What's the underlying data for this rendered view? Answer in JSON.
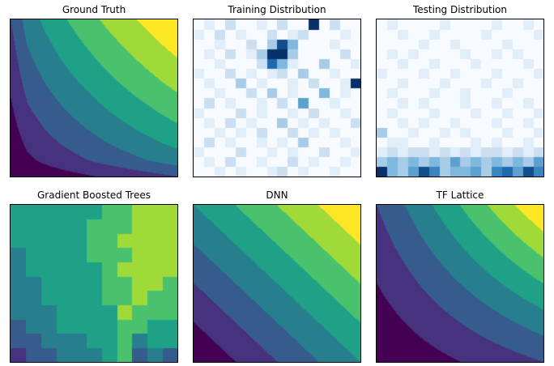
{
  "colormaps": {
    "viridis8": [
      "#440154",
      "#46327e",
      "#365c8d",
      "#277f8e",
      "#1fa187",
      "#4ac16d",
      "#a0da39",
      "#fde725"
    ],
    "blues_stops": [
      [
        0,
        "#f7fbff"
      ],
      [
        0.25,
        "#c6dbef"
      ],
      [
        0.5,
        "#6baed6"
      ],
      [
        0.75,
        "#2171b5"
      ],
      [
        1,
        "#08306b"
      ]
    ]
  },
  "chart_data": [
    {
      "type": "heatmap",
      "title": "Ground Truth",
      "colormap": "viridis",
      "interpolation": "bilinear",
      "levels": 8,
      "value_range": [
        0,
        1
      ],
      "rows_top_to_bottom": true,
      "grid": [
        [
          0.25,
          0.433,
          0.523,
          0.599,
          0.666,
          0.729,
          0.788,
          0.843,
          0.897,
          0.95,
          1
        ],
        [
          0.225,
          0.4,
          0.487,
          0.56,
          0.625,
          0.686,
          0.743,
          0.797,
          0.849,
          0.9,
          0.95
        ],
        [
          0.2,
          0.366,
          0.45,
          0.52,
          0.582,
          0.641,
          0.696,
          0.749,
          0.799,
          0.849,
          0.897
        ],
        [
          0.175,
          0.332,
          0.412,
          0.48,
          0.539,
          0.596,
          0.65,
          0.7,
          0.749,
          0.797,
          0.843
        ],
        [
          0.15,
          0.298,
          0.373,
          0.438,
          0.495,
          0.549,
          0.6,
          0.65,
          0.696,
          0.743,
          0.788
        ],
        [
          0.125,
          0.262,
          0.333,
          0.394,
          0.448,
          0.5,
          0.549,
          0.596,
          0.641,
          0.686,
          0.729
        ],
        [
          0.1,
          0.225,
          0.291,
          0.348,
          0.399,
          0.448,
          0.495,
          0.539,
          0.582,
          0.625,
          0.666
        ],
        [
          0.075,
          0.187,
          0.248,
          0.3,
          0.348,
          0.394,
          0.438,
          0.48,
          0.52,
          0.56,
          0.599
        ],
        [
          0.05,
          0.146,
          0.2,
          0.248,
          0.291,
          0.333,
          0.373,
          0.412,
          0.45,
          0.487,
          0.523
        ],
        [
          0.025,
          0.1,
          0.146,
          0.187,
          0.225,
          0.262,
          0.298,
          0.332,
          0.366,
          0.4,
          0.433
        ],
        [
          0,
          0.025,
          0.05,
          0.075,
          0.1,
          0.125,
          0.15,
          0.175,
          0.2,
          0.225,
          0.25
        ]
      ]
    },
    {
      "type": "heatmap",
      "title": "Training Distribution",
      "colormap": "blues",
      "interpolation": "nearest",
      "count_scale_max": 9,
      "rows_top_to_bottom": true,
      "rows_digits": [
        "0102001020090200",
        "1020100201200010",
        "0010020384000100",
        "0102013993000020",
        "0010002741003001",
        "1002010120300100",
        "0100301001020019",
        "0010020301004010",
        "0201001020500100",
        "1000201001020010",
        "0102010030101002",
        "0010102002010100",
        "0201001010300010",
        "1000200101002001",
        "0102001002010010",
        "0010100120100100"
      ]
    },
    {
      "type": "heatmap",
      "title": "Testing Distribution",
      "colormap": "blues",
      "interpolation": "nearest",
      "count_scale_max": 9,
      "rows_top_to_bottom": true,
      "rows_digits": [
        "0100001000010010",
        "0010010000100001",
        "0000100100001000",
        "0101000010010100",
        "0010010001000010",
        "1000100100010001",
        "0010001000100100",
        "0100010010001000",
        "0010100010010010",
        "0100010001001001",
        "0010100100010010",
        "3001001010001001",
        "0110010001010010",
        "1212212121221212",
        "3434343534343435",
        "9435863445367586"
      ]
    },
    {
      "type": "heatmap",
      "title": "Gradient Boosted Trees",
      "colormap": "viridis",
      "interpolation": "nearest",
      "levels": 8,
      "value_range": [
        0,
        1
      ],
      "rows_top_to_bottom": true,
      "grid": [
        [
          0.55,
          0.55,
          0.6,
          0.6,
          0.62,
          0.62,
          0.68,
          0.72,
          0.8,
          0.85,
          0.85
        ],
        [
          0.5,
          0.55,
          0.55,
          0.6,
          0.62,
          0.65,
          0.68,
          0.72,
          0.8,
          0.85,
          0.8
        ],
        [
          0.5,
          0.5,
          0.55,
          0.6,
          0.6,
          0.65,
          0.7,
          0.75,
          0.85,
          0.8,
          0.8
        ],
        [
          0.45,
          0.5,
          0.55,
          0.55,
          0.6,
          0.65,
          0.7,
          0.72,
          0.8,
          0.8,
          0.78
        ],
        [
          0.45,
          0.5,
          0.5,
          0.55,
          0.6,
          0.62,
          0.68,
          0.75,
          0.82,
          0.78,
          0.75
        ],
        [
          0.42,
          0.48,
          0.5,
          0.55,
          0.58,
          0.6,
          0.65,
          0.72,
          0.8,
          0.75,
          0.72
        ],
        [
          0.4,
          0.45,
          0.5,
          0.52,
          0.55,
          0.6,
          0.65,
          0.7,
          0.78,
          0.72,
          0.7
        ],
        [
          0.38,
          0.42,
          0.48,
          0.5,
          0.55,
          0.58,
          0.62,
          0.78,
          0.7,
          0.68,
          0.65
        ],
        [
          0.35,
          0.4,
          0.45,
          0.5,
          0.5,
          0.55,
          0.6,
          0.72,
          0.65,
          0.6,
          0.6
        ],
        [
          0.3,
          0.35,
          0.4,
          0.45,
          0.48,
          0.5,
          0.55,
          0.7,
          0.45,
          0.55,
          0.5
        ],
        [
          0.2,
          0.3,
          0.35,
          0.4,
          0.42,
          0.45,
          0.5,
          0.68,
          0.3,
          0.4,
          0.35
        ]
      ]
    },
    {
      "type": "heatmap",
      "title": "DNN",
      "colormap": "viridis",
      "interpolation": "bilinear",
      "levels": 8,
      "value_range": [
        0,
        1
      ],
      "rows_top_to_bottom": true,
      "grid": [
        [
          0.5,
          0.55,
          0.6,
          0.65,
          0.7,
          0.75,
          0.8,
          0.85,
          0.9,
          0.95,
          1
        ],
        [
          0.45,
          0.5,
          0.55,
          0.6,
          0.65,
          0.7,
          0.75,
          0.8,
          0.85,
          0.9,
          0.95
        ],
        [
          0.4,
          0.45,
          0.5,
          0.55,
          0.6,
          0.65,
          0.7,
          0.75,
          0.8,
          0.85,
          0.9
        ],
        [
          0.35,
          0.4,
          0.45,
          0.5,
          0.55,
          0.6,
          0.65,
          0.7,
          0.75,
          0.8,
          0.85
        ],
        [
          0.3,
          0.35,
          0.4,
          0.45,
          0.5,
          0.55,
          0.6,
          0.65,
          0.7,
          0.75,
          0.8
        ],
        [
          0.25,
          0.3,
          0.35,
          0.4,
          0.45,
          0.5,
          0.55,
          0.6,
          0.65,
          0.7,
          0.75
        ],
        [
          0.2,
          0.25,
          0.3,
          0.35,
          0.4,
          0.45,
          0.5,
          0.55,
          0.6,
          0.65,
          0.7
        ],
        [
          0.15,
          0.2,
          0.25,
          0.3,
          0.35,
          0.4,
          0.45,
          0.5,
          0.55,
          0.6,
          0.65
        ],
        [
          0.1,
          0.15,
          0.2,
          0.25,
          0.3,
          0.35,
          0.4,
          0.45,
          0.5,
          0.55,
          0.6
        ],
        [
          0.05,
          0.1,
          0.15,
          0.2,
          0.25,
          0.3,
          0.35,
          0.4,
          0.45,
          0.5,
          0.55
        ],
        [
          0,
          0.05,
          0.1,
          0.15,
          0.2,
          0.25,
          0.3,
          0.35,
          0.4,
          0.45,
          0.5
        ]
      ]
    },
    {
      "type": "heatmap",
      "title": "TF Lattice",
      "colormap": "viridis",
      "interpolation": "bilinear",
      "levels": 8,
      "value_range": [
        0,
        1
      ],
      "rows_top_to_bottom": true,
      "grid": [
        [
          0.25,
          0.325,
          0.4,
          0.475,
          0.55,
          0.625,
          0.7,
          0.775,
          0.85,
          0.925,
          1
        ],
        [
          0.225,
          0.295,
          0.365,
          0.435,
          0.505,
          0.575,
          0.645,
          0.715,
          0.785,
          0.855,
          0.925
        ],
        [
          0.2,
          0.265,
          0.33,
          0.395,
          0.46,
          0.525,
          0.59,
          0.655,
          0.72,
          0.785,
          0.85
        ],
        [
          0.175,
          0.235,
          0.295,
          0.355,
          0.415,
          0.475,
          0.535,
          0.595,
          0.655,
          0.715,
          0.775
        ],
        [
          0.15,
          0.205,
          0.26,
          0.315,
          0.37,
          0.425,
          0.48,
          0.535,
          0.59,
          0.645,
          0.7
        ],
        [
          0.125,
          0.175,
          0.225,
          0.275,
          0.325,
          0.375,
          0.425,
          0.475,
          0.525,
          0.575,
          0.625
        ],
        [
          0.1,
          0.145,
          0.19,
          0.235,
          0.28,
          0.325,
          0.37,
          0.415,
          0.46,
          0.505,
          0.55
        ],
        [
          0.075,
          0.115,
          0.155,
          0.195,
          0.235,
          0.275,
          0.315,
          0.355,
          0.395,
          0.435,
          0.475
        ],
        [
          0.05,
          0.085,
          0.12,
          0.155,
          0.19,
          0.225,
          0.26,
          0.295,
          0.33,
          0.365,
          0.4
        ],
        [
          0.025,
          0.055,
          0.085,
          0.115,
          0.145,
          0.175,
          0.205,
          0.235,
          0.265,
          0.295,
          0.325
        ],
        [
          0,
          0.025,
          0.05,
          0.075,
          0.1,
          0.125,
          0.15,
          0.175,
          0.2,
          0.225,
          0.25
        ]
      ]
    }
  ]
}
